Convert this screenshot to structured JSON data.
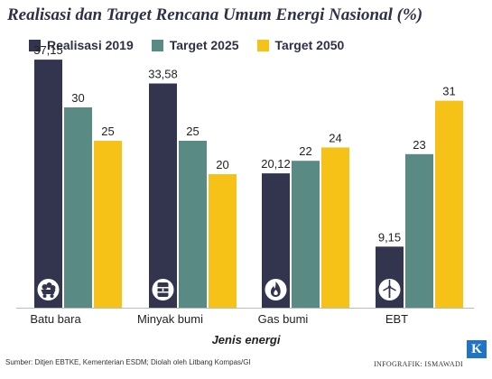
{
  "chart_data": {
    "type": "bar",
    "title": "Realisasi dan Target Rencana Umum Energi Nasional (%)",
    "xlabel": "Jenis energi",
    "ylabel": "",
    "categories": [
      "Batu bara",
      "Minyak bumi",
      "Gas bumi",
      "EBT"
    ],
    "series": [
      {
        "name": "Realisasi 2019",
        "values": [
          37.15,
          33.58,
          20.12,
          9.15
        ],
        "labels": [
          "37,15",
          "33,58",
          "20,12",
          "9,15"
        ],
        "color": "#33354f"
      },
      {
        "name": "Target 2025",
        "values": [
          30,
          25,
          22,
          23
        ],
        "labels": [
          "30",
          "25",
          "22",
          "23"
        ],
        "color": "#5a8a84"
      },
      {
        "name": "Target 2050",
        "values": [
          25,
          20,
          24,
          31
        ],
        "labels": [
          "25",
          "20",
          "24",
          "31"
        ],
        "color": "#f7c217"
      }
    ],
    "ylim": [
      0,
      40
    ],
    "legend_position": "top",
    "grid": false,
    "category_icons": [
      "coal-cart-icon",
      "oil-barrel-icon",
      "gas-flame-icon",
      "wind-turbine-icon"
    ]
  },
  "footer": {
    "source": "Sumber: Ditjen EBTKE, Kementerian ESDM; Diolah oleh Litbang Kompas/GI",
    "credit": "INFOGRAFIK: ISMAWADI",
    "logo_letter": "K"
  }
}
